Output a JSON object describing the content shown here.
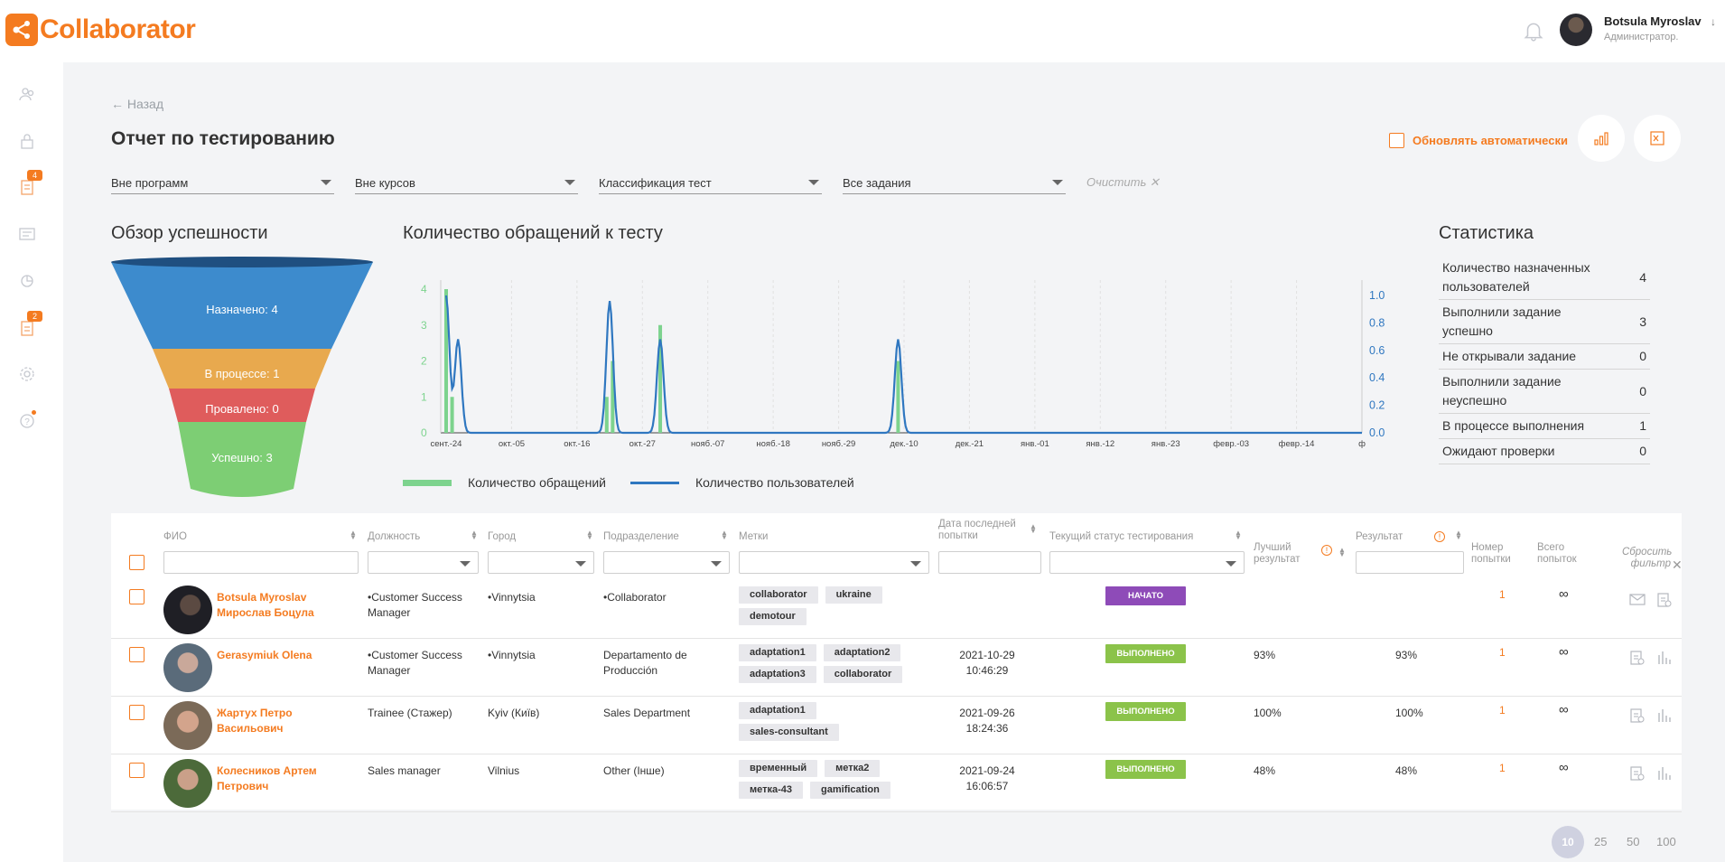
{
  "app": {
    "name": "Collaborator"
  },
  "user": {
    "name": "Botsula Myroslav",
    "role": "Администратор."
  },
  "sidebar": {
    "badges": [
      "4",
      "2"
    ]
  },
  "page": {
    "back_label": "← Назад",
    "title": "Отчет по тестированию",
    "auto_refresh_label": "Обновлять автоматически"
  },
  "filters": [
    "Вне программ",
    "Вне курсов",
    "Классификация тест",
    "Все задания"
  ],
  "clear_label": "Очистить ✕",
  "sections": {
    "funnel_title": "Обзор успешности",
    "chart_title": "Количество обращений к тесту",
    "stats_title": "Статистика"
  },
  "funnel": {
    "assigned": "Назначено: 4",
    "in_progress": "В процессе: 1",
    "failed": "Провалено: 0",
    "success": "Успешно: 3",
    "colors": {
      "assigned": "#3d8bcd",
      "in_progress": "#e8a94e",
      "failed": "#df5c5c",
      "success": "#7dce74"
    }
  },
  "chart_data": {
    "type": "bar+line",
    "x_ticks": [
      "сент.-24",
      "окт.-05",
      "окт.-16",
      "окт.-27",
      "нояб.-07",
      "нояб.-18",
      "нояб.-29",
      "дек.-10",
      "дек.-21",
      "янв.-01",
      "янв.-12",
      "янв.-23",
      "февр.-03",
      "февр.-14",
      "ф"
    ],
    "y_left_ticks": [
      "0",
      "1",
      "2",
      "3",
      "4"
    ],
    "y_right_ticks": [
      "0.0",
      "0.2",
      "0.4",
      "0.6",
      "0.8",
      "1.0"
    ],
    "ylim_left": [
      0,
      4
    ],
    "ylim_right": [
      0,
      1
    ],
    "x_start_day": 0,
    "x_end_day": 154,
    "bars": [
      {
        "day": 0,
        "value": 4
      },
      {
        "day": 1,
        "value": 1
      },
      {
        "day": 27,
        "value": 1
      },
      {
        "day": 28,
        "value": 2
      },
      {
        "day": 36,
        "value": 3
      },
      {
        "day": 76,
        "value": 2
      }
    ],
    "line_peaks": [
      {
        "day": 0,
        "value": 1.0
      },
      {
        "day": 2,
        "value": 0.68
      },
      {
        "day": 27.5,
        "value": 0.96
      },
      {
        "day": 36,
        "value": 0.68
      },
      {
        "day": 76,
        "value": 0.68
      }
    ],
    "series": [
      {
        "name": "Количество обращений",
        "color": "#7dd38e"
      },
      {
        "name": "Количество пользователей",
        "color": "#2f77c0"
      }
    ]
  },
  "stats": [
    {
      "label": "Количество назначенных пользователей",
      "value": "4"
    },
    {
      "label": "Выполнили задание успешно",
      "value": "3"
    },
    {
      "label": "Не открывали задание",
      "value": "0"
    },
    {
      "label": "Выполнили задание неуспешно",
      "value": "0"
    },
    {
      "label": "В процессе выполнения",
      "value": "1"
    },
    {
      "label": "Ожидают проверки",
      "value": "0"
    }
  ],
  "table": {
    "headers": {
      "fio": "ФИО",
      "position": "Должность",
      "city": "Город",
      "department": "Подразделение",
      "tags": "Метки",
      "last_attempt": "Дата последней попытки",
      "status": "Текущий статус тестирования",
      "best": "Лучший результат",
      "result": "Результат",
      "attempt_no": "Номер попытки",
      "total": "Всего попыток",
      "reset": "Сбросить фильтр"
    },
    "rows": [
      {
        "name": "Botsula Myroslav Мирослав Боцула",
        "position": "•Customer Success Manager",
        "city": "•Vinnytsia",
        "department": "•Collaborator",
        "tags": [
          "collaborator",
          "ukraine",
          "demotour"
        ],
        "date": "",
        "status": "НАЧАТО",
        "status_color": "#8e4bb8",
        "best": "",
        "result": "",
        "attempt": "1",
        "total": "∞"
      },
      {
        "name": "Gerasymiuk Olena",
        "position": "•Customer Success Manager",
        "city": "•Vinnytsia",
        "department": "Departamento de Producción",
        "tags": [
          "adaptation1",
          "adaptation2",
          "adaptation3",
          "collaborator"
        ],
        "date": "2021-10-29 10:46:29",
        "status": "ВЫПОЛНЕНО",
        "status_color": "#8bc34a",
        "best": "93%",
        "result": "93%",
        "attempt": "1",
        "total": "∞"
      },
      {
        "name": "Жартух Петро Васильович",
        "position": "Trainee (Стажер)",
        "city": "Kyiv (Київ)",
        "department": "Sales Department",
        "tags": [
          "adaptation1",
          "sales-consultant"
        ],
        "date": "2021-09-26 18:24:36",
        "status": "ВЫПОЛНЕНО",
        "status_color": "#8bc34a",
        "best": "100%",
        "result": "100%",
        "attempt": "1",
        "total": "∞"
      },
      {
        "name": "Колесников Артем Петрович",
        "position": "Sales manager",
        "city": "Vilnius",
        "department": "Other (Інше)",
        "tags": [
          "временный",
          "метка2",
          "метка-43",
          "gamification"
        ],
        "date": "2021-09-24 16:06:57",
        "status": "ВЫПОЛНЕНО",
        "status_color": "#8bc34a",
        "best": "48%",
        "result": "48%",
        "attempt": "1",
        "total": "∞"
      }
    ]
  },
  "pager": [
    "10",
    "25",
    "50",
    "100"
  ]
}
